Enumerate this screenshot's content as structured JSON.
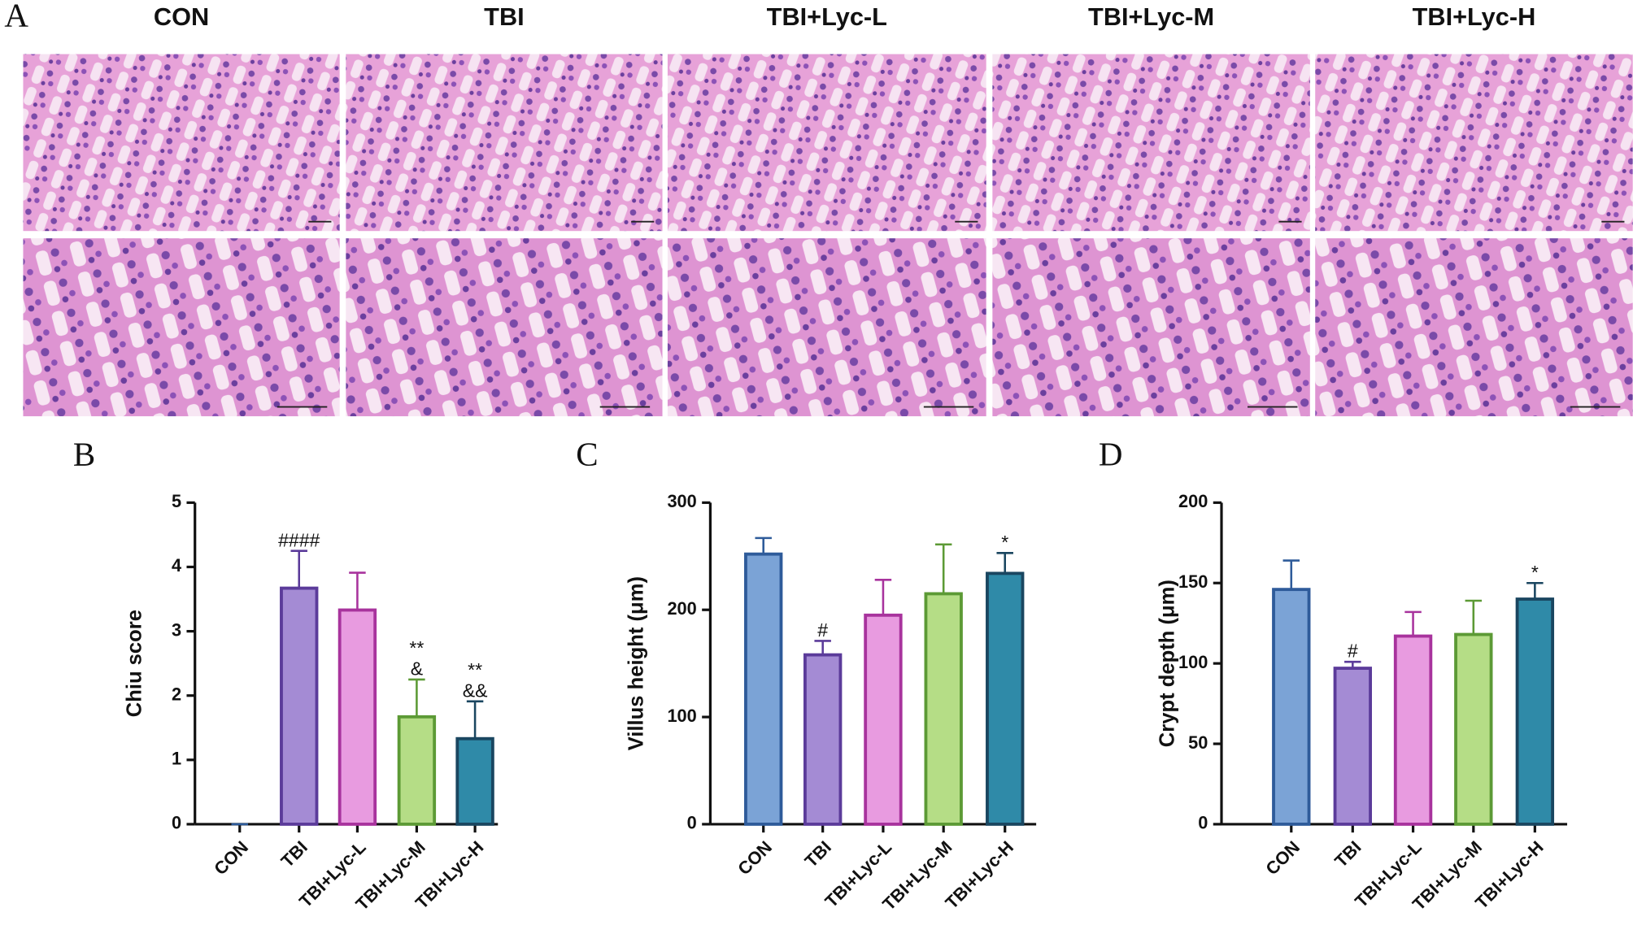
{
  "panel_a": {
    "label": "A",
    "columns": [
      "CON",
      "TBI",
      "TBI+Lyc-L",
      "TBI+Lyc-M",
      "TBI+Lyc-H"
    ]
  },
  "chart_data": [
    {
      "type": "bar",
      "panel_label": "B",
      "y_label": "Chiu score",
      "categories": [
        "CON",
        "TBI",
        "TBI+Lyc-L",
        "TBI+Lyc-M",
        "TBI+Lyc-H"
      ],
      "values": [
        0,
        3.67,
        3.33,
        1.67,
        1.33
      ],
      "errors": [
        0,
        0.58,
        0.58,
        0.58,
        0.58
      ],
      "annotations": [
        [],
        [
          "####"
        ],
        [],
        [
          "**",
          "&"
        ],
        [
          "**",
          "&&"
        ]
      ],
      "colors": [
        "#7ba3d6",
        "#a48bd4",
        "#e89be0",
        "#b5dd86",
        "#2f8aa8"
      ],
      "edge_colors": [
        "#2e5b9a",
        "#5b3b9a",
        "#a8339d",
        "#5c9a35",
        "#1a4660"
      ],
      "ylim": [
        0,
        5
      ],
      "yticks": [
        0,
        1,
        2,
        3,
        4,
        5
      ]
    },
    {
      "type": "bar",
      "panel_label": "C",
      "y_label": "Villus height (μm)",
      "categories": [
        "CON",
        "TBI",
        "TBI+Lyc-L",
        "TBI+Lyc-M",
        "TBI+Lyc-H"
      ],
      "values": [
        252,
        158,
        195,
        215,
        234
      ],
      "errors": [
        15,
        13,
        33,
        46,
        19
      ],
      "annotations": [
        [],
        [
          "#"
        ],
        [],
        [],
        [
          "*"
        ]
      ],
      "colors": [
        "#7ba3d6",
        "#a48bd4",
        "#e89be0",
        "#b5dd86",
        "#2f8aa8"
      ],
      "edge_colors": [
        "#2e5b9a",
        "#5b3b9a",
        "#a8339d",
        "#5c9a35",
        "#1a4660"
      ],
      "ylim": [
        0,
        300
      ],
      "yticks": [
        0,
        100,
        200,
        300
      ]
    },
    {
      "type": "bar",
      "panel_label": "D",
      "y_label": "Crypt depth (μm)",
      "categories": [
        "CON",
        "TBI",
        "TBI+Lyc-L",
        "TBI+Lyc-M",
        "TBI+Lyc-H"
      ],
      "values": [
        146,
        97,
        117,
        118,
        140
      ],
      "errors": [
        18,
        4,
        15,
        21,
        10
      ],
      "annotations": [
        [],
        [
          "#"
        ],
        [],
        [],
        [
          "*"
        ]
      ],
      "colors": [
        "#7ba3d6",
        "#a48bd4",
        "#e89be0",
        "#b5dd86",
        "#2f8aa8"
      ],
      "edge_colors": [
        "#2e5b9a",
        "#5b3b9a",
        "#a8339d",
        "#5c9a35",
        "#1a4660"
      ],
      "ylim": [
        0,
        200
      ],
      "yticks": [
        0,
        50,
        100,
        150,
        200
      ]
    }
  ]
}
